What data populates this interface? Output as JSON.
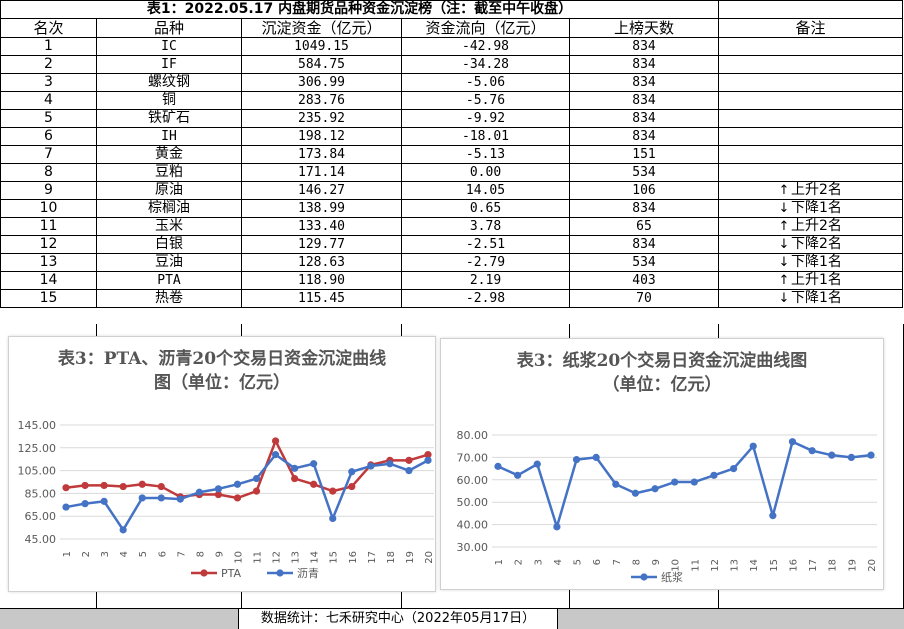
{
  "table": {
    "title": "表1：2022.05.17 内盘期货品种资金沉淀榜（注：截至中午收盘）",
    "headers": [
      "名次",
      "品种",
      "沉淀资金（亿元）",
      "资金流向（亿元）",
      "上榜天数",
      "备注"
    ],
    "rows": [
      {
        "rank": "1",
        "name": "IC",
        "fund": "1049.15",
        "flow": "-42.98",
        "days": "834",
        "note": "",
        "dir": ""
      },
      {
        "rank": "2",
        "name": "IF",
        "fund": "584.75",
        "flow": "-34.28",
        "days": "834",
        "note": "",
        "dir": ""
      },
      {
        "rank": "3",
        "name": "螺纹钢",
        "fund": "306.99",
        "flow": "-5.06",
        "days": "834",
        "note": "",
        "dir": ""
      },
      {
        "rank": "4",
        "name": "铜",
        "fund": "283.76",
        "flow": "-5.76",
        "days": "834",
        "note": "",
        "dir": ""
      },
      {
        "rank": "5",
        "name": "铁矿石",
        "fund": "235.92",
        "flow": "-9.92",
        "days": "834",
        "note": "",
        "dir": ""
      },
      {
        "rank": "6",
        "name": "IH",
        "fund": "198.12",
        "flow": "-18.01",
        "days": "834",
        "note": "",
        "dir": ""
      },
      {
        "rank": "7",
        "name": "黄金",
        "fund": "173.84",
        "flow": "-5.13",
        "days": "151",
        "note": "",
        "dir": ""
      },
      {
        "rank": "8",
        "name": "豆粕",
        "fund": "171.14",
        "flow": "0.00",
        "days": "534",
        "note": "",
        "dir": ""
      },
      {
        "rank": "9",
        "name": "原油",
        "fund": "146.27",
        "flow": "14.05",
        "days": "106",
        "note": "上升2名",
        "dir": "up"
      },
      {
        "rank": "10",
        "name": "棕榈油",
        "fund": "138.99",
        "flow": "0.65",
        "days": "834",
        "note": "下降1名",
        "dir": "down"
      },
      {
        "rank": "11",
        "name": "玉米",
        "fund": "133.40",
        "flow": "3.78",
        "days": "65",
        "note": "上升2名",
        "dir": "up"
      },
      {
        "rank": "12",
        "name": "白银",
        "fund": "129.77",
        "flow": "-2.51",
        "days": "834",
        "note": "下降2名",
        "dir": "down"
      },
      {
        "rank": "13",
        "name": "豆油",
        "fund": "128.63",
        "flow": "-2.79",
        "days": "534",
        "note": "下降1名",
        "dir": "down"
      },
      {
        "rank": "14",
        "name": "PTA",
        "fund": "118.90",
        "flow": "2.19",
        "days": "403",
        "note": "上升1名",
        "dir": "up"
      },
      {
        "rank": "15",
        "name": "热卷",
        "fund": "115.45",
        "flow": "-2.98",
        "days": "70",
        "note": "下降1名",
        "dir": "down"
      }
    ]
  },
  "footer": "数据统计：七禾研究中心（2022年05月17日）",
  "colors": {
    "pta": "#c0393b",
    "asphalt": "#4472c4",
    "pulp": "#4472c4",
    "axis_text": "#595959",
    "grid": "#d9d9d9"
  },
  "chart_data": [
    {
      "type": "line",
      "title_lines": [
        "表3：PTA、沥青20个交易日资金沉淀曲线",
        "图（单位：亿元）"
      ],
      "x": [
        "1",
        "2",
        "3",
        "4",
        "5",
        "6",
        "7",
        "8",
        "9",
        "10",
        "11",
        "12",
        "13",
        "14",
        "15",
        "16",
        "17",
        "18",
        "19",
        "20"
      ],
      "yticks": [
        "45.00",
        "65.00",
        "85.00",
        "105.00",
        "125.00",
        "145.00"
      ],
      "ylim": [
        45,
        145
      ],
      "grid": true,
      "legend": "bottom",
      "series": [
        {
          "name": "PTA",
          "values": [
            90,
            92,
            92,
            91,
            93,
            91,
            82,
            84,
            84,
            81,
            87,
            131,
            98,
            93,
            87,
            91,
            110,
            114,
            114,
            119
          ]
        },
        {
          "name": "沥青",
          "values": [
            73,
            76,
            78,
            53,
            81,
            81,
            80,
            86,
            89,
            93,
            98,
            119,
            107,
            111,
            63,
            104,
            109,
            111,
            105,
            114
          ]
        }
      ]
    },
    {
      "type": "line",
      "title_lines": [
        "表3：纸浆20个交易日资金沉淀曲线图",
        "（单位：亿元）"
      ],
      "x": [
        "1",
        "2",
        "3",
        "4",
        "5",
        "6",
        "7",
        "8",
        "9",
        "10",
        "11",
        "12",
        "13",
        "14",
        "15",
        "16",
        "17",
        "18",
        "19",
        "20"
      ],
      "yticks": [
        "30.00",
        "40.00",
        "50.00",
        "60.00",
        "70.00",
        "80.00"
      ],
      "ylim": [
        30,
        80
      ],
      "grid": true,
      "legend": "bottom",
      "series": [
        {
          "name": "纸浆",
          "values": [
            66,
            62,
            67,
            39,
            69,
            70,
            58,
            54,
            56,
            59,
            59,
            62,
            65,
            75,
            44,
            77,
            73,
            71,
            70,
            71
          ]
        }
      ]
    }
  ]
}
